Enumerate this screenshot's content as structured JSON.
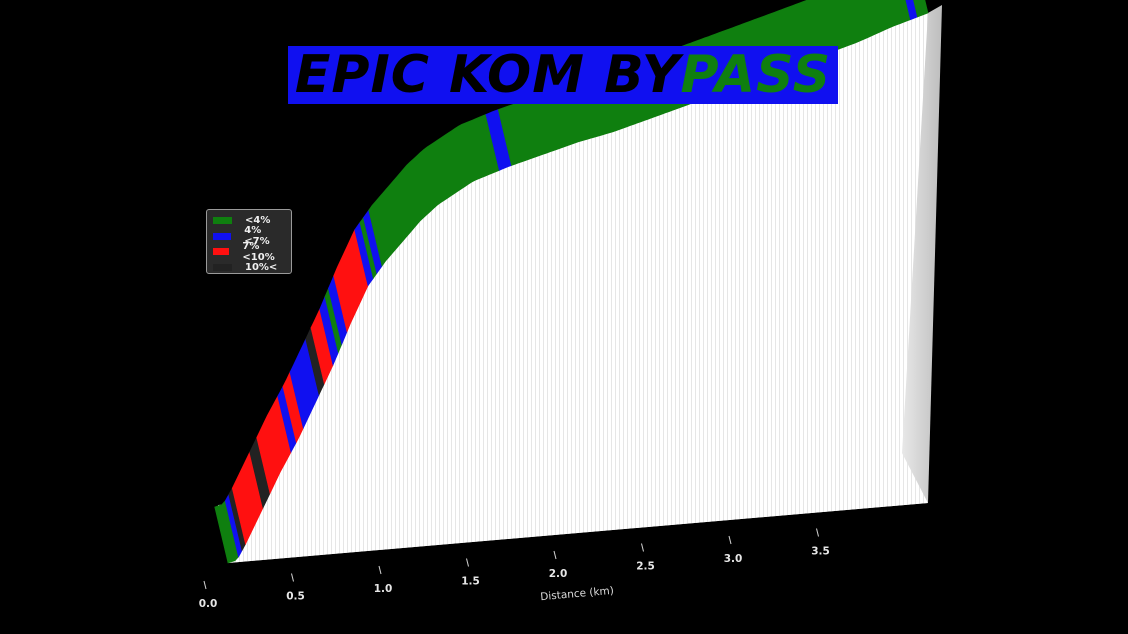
{
  "chart_data": {
    "type": "area",
    "title": "EPIC KOM BYPASS",
    "xlabel": "Distance (km)",
    "ylabel": "",
    "x_ticks": [
      0.0,
      0.5,
      1.0,
      1.5,
      2.0,
      2.5,
      3.0,
      3.5
    ],
    "x_tick_labels": [
      "0.0",
      "0.5",
      "1.0",
      "1.5",
      "2.0",
      "2.5",
      "3.0",
      "3.5"
    ],
    "xlim": [
      0,
      4.0
    ],
    "legend_placement": "left",
    "legend": [
      {
        "label": "<4%",
        "color": "#0f7f0f"
      },
      {
        "label": "4%<7%",
        "color": "#1010f0"
      },
      {
        "label": "7%<10%",
        "color": "#ff1010"
      },
      {
        "label": "10%<",
        "color": "#222222"
      }
    ],
    "profile": {
      "x_km": [
        0.0,
        0.05,
        0.1,
        0.2,
        0.3,
        0.4,
        0.5,
        0.6,
        0.7,
        0.8,
        0.9,
        1.0,
        1.1,
        1.2,
        1.3,
        1.4,
        1.5,
        1.6,
        1.8,
        2.0,
        2.2,
        2.4,
        2.6,
        2.8,
        3.0,
        3.2,
        3.4,
        3.6,
        3.8,
        4.0
      ],
      "elevation_rel": [
        0.0,
        0.005,
        0.04,
        0.12,
        0.2,
        0.27,
        0.35,
        0.43,
        0.52,
        0.6,
        0.65,
        0.69,
        0.73,
        0.76,
        0.78,
        0.8,
        0.81,
        0.82,
        0.835,
        0.85,
        0.86,
        0.875,
        0.89,
        0.905,
        0.92,
        0.935,
        0.95,
        0.965,
        0.985,
        1.0
      ]
    },
    "segments": [
      {
        "from": 0.0,
        "to": 0.06,
        "category": "<4%"
      },
      {
        "from": 0.06,
        "to": 0.08,
        "category": "4%<7%"
      },
      {
        "from": 0.08,
        "to": 0.1,
        "category": "10%<"
      },
      {
        "from": 0.1,
        "to": 0.2,
        "category": "7%<10%"
      },
      {
        "from": 0.2,
        "to": 0.24,
        "category": "10%<"
      },
      {
        "from": 0.24,
        "to": 0.36,
        "category": "7%<10%"
      },
      {
        "from": 0.36,
        "to": 0.39,
        "category": "4%<7%"
      },
      {
        "from": 0.39,
        "to": 0.43,
        "category": "7%<10%"
      },
      {
        "from": 0.43,
        "to": 0.52,
        "category": "4%<7%"
      },
      {
        "from": 0.52,
        "to": 0.55,
        "category": "10%<"
      },
      {
        "from": 0.55,
        "to": 0.6,
        "category": "7%<10%"
      },
      {
        "from": 0.6,
        "to": 0.63,
        "category": "4%<7%"
      },
      {
        "from": 0.63,
        "to": 0.65,
        "category": "<4%"
      },
      {
        "from": 0.65,
        "to": 0.68,
        "category": "4%<7%"
      },
      {
        "from": 0.68,
        "to": 0.8,
        "category": "7%<10%"
      },
      {
        "from": 0.8,
        "to": 0.83,
        "category": "4%<7%"
      },
      {
        "from": 0.83,
        "to": 0.85,
        "category": "<4%"
      },
      {
        "from": 0.85,
        "to": 0.88,
        "category": "4%<7%"
      },
      {
        "from": 0.88,
        "to": 1.55,
        "category": "<4%"
      },
      {
        "from": 1.55,
        "to": 1.62,
        "category": "4%<7%"
      },
      {
        "from": 1.62,
        "to": 3.9,
        "category": "<4%"
      },
      {
        "from": 3.9,
        "to": 3.94,
        "category": "4%<7%"
      },
      {
        "from": 3.94,
        "to": 4.0,
        "category": "<4%"
      }
    ],
    "background": "#000000",
    "surface_color": "#ffffff"
  }
}
